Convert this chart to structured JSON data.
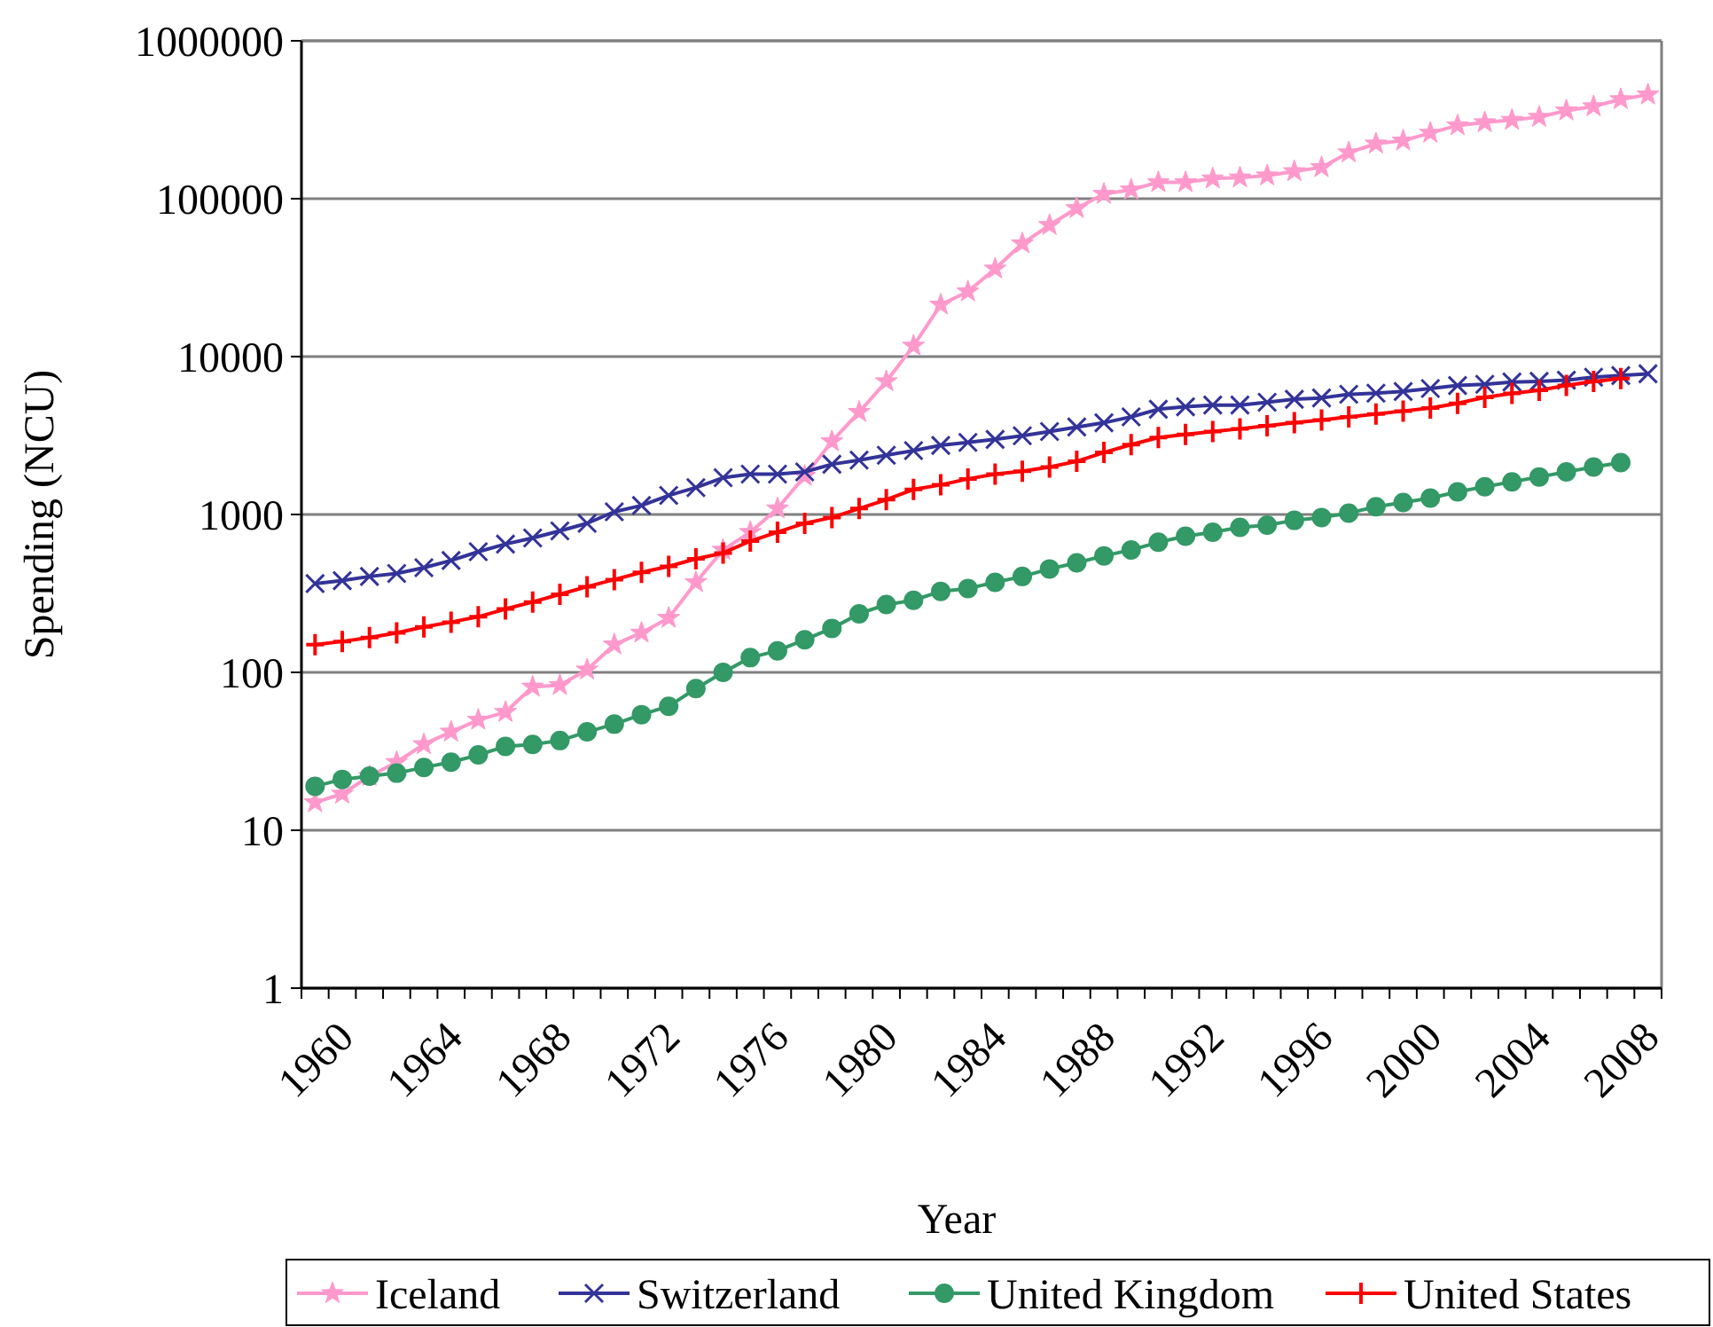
{
  "chart_data": {
    "type": "line",
    "xlabel": "Year",
    "ylabel": "Spending (NCU)",
    "categories": [
      "1960",
      null,
      null,
      null,
      "1964",
      null,
      null,
      null,
      "1968",
      null,
      null,
      null,
      "1972",
      null,
      null,
      null,
      "1976",
      null,
      null,
      null,
      "1980",
      null,
      null,
      null,
      "1984",
      null,
      null,
      null,
      "1988",
      null,
      null,
      null,
      "1992",
      null,
      null,
      null,
      "1996",
      null,
      null,
      null,
      "2000",
      null,
      null,
      null,
      "2004",
      null,
      null,
      null,
      "2008",
      null
    ],
    "log": true,
    "ylim": [
      1,
      1000000
    ],
    "yticks": [
      1,
      10,
      100,
      1000,
      10000,
      100000,
      1000000
    ],
    "grid": "y",
    "legend": "bottom",
    "series": [
      {
        "name": "Iceland",
        "color": "#ff99cc",
        "marker": "star",
        "values": [
          15,
          17,
          22,
          27,
          35,
          42,
          50,
          56,
          81,
          83,
          104,
          150,
          178,
          221,
          372,
          596,
          773,
          1090,
          1750,
          2900,
          4450,
          6960,
          11700,
          21300,
          25800,
          36000,
          52000,
          68000,
          87000,
          107000,
          114000,
          127000,
          127000,
          134000,
          136000,
          140000,
          149000,
          158000,
          196000,
          223000,
          233000,
          261000,
          291000,
          304000,
          315000,
          329000,
          361000,
          384000,
          426000,
          456000
        ]
      },
      {
        "name": "Switzerland",
        "color": "#333399",
        "marker": "cross",
        "values": [
          365,
          381,
          405,
          423,
          460,
          511,
          581,
          649,
          710,
          787,
          879,
          1040,
          1140,
          1320,
          1480,
          1710,
          1800,
          1800,
          1860,
          2080,
          2210,
          2370,
          2540,
          2740,
          2860,
          2990,
          3150,
          3350,
          3580,
          3810,
          4150,
          4640,
          4810,
          4930,
          4930,
          5140,
          5370,
          5470,
          5770,
          5860,
          6010,
          6280,
          6560,
          6670,
          6900,
          6970,
          7090,
          7400,
          7590,
          7780
        ]
      },
      {
        "name": "United Kingdom",
        "color": "#339966",
        "marker": "circle",
        "values": [
          19,
          21,
          22,
          23,
          25,
          27,
          30,
          34,
          35,
          37,
          42,
          47,
          54,
          61,
          79,
          100,
          124,
          137,
          161,
          190,
          235,
          269,
          286,
          326,
          340,
          372,
          405,
          452,
          494,
          547,
          596,
          667,
          728,
          773,
          828,
          857,
          918,
          957,
          1020,
          1120,
          1190,
          1270,
          1390,
          1500,
          1610,
          1730,
          1860,
          2000,
          2130,
          null
        ]
      },
      {
        "name": "United States",
        "color": "#ff0000",
        "marker": "plus",
        "values": [
          150,
          157,
          166,
          178,
          194,
          208,
          225,
          252,
          279,
          312,
          349,
          387,
          430,
          469,
          524,
          570,
          678,
          773,
          879,
          957,
          1090,
          1240,
          1440,
          1540,
          1680,
          1800,
          1880,
          2000,
          2170,
          2470,
          2770,
          3070,
          3210,
          3350,
          3490,
          3650,
          3810,
          3970,
          4150,
          4330,
          4520,
          4720,
          5060,
          5520,
          5850,
          6120,
          6560,
          6960,
          7270,
          null
        ]
      }
    ]
  }
}
